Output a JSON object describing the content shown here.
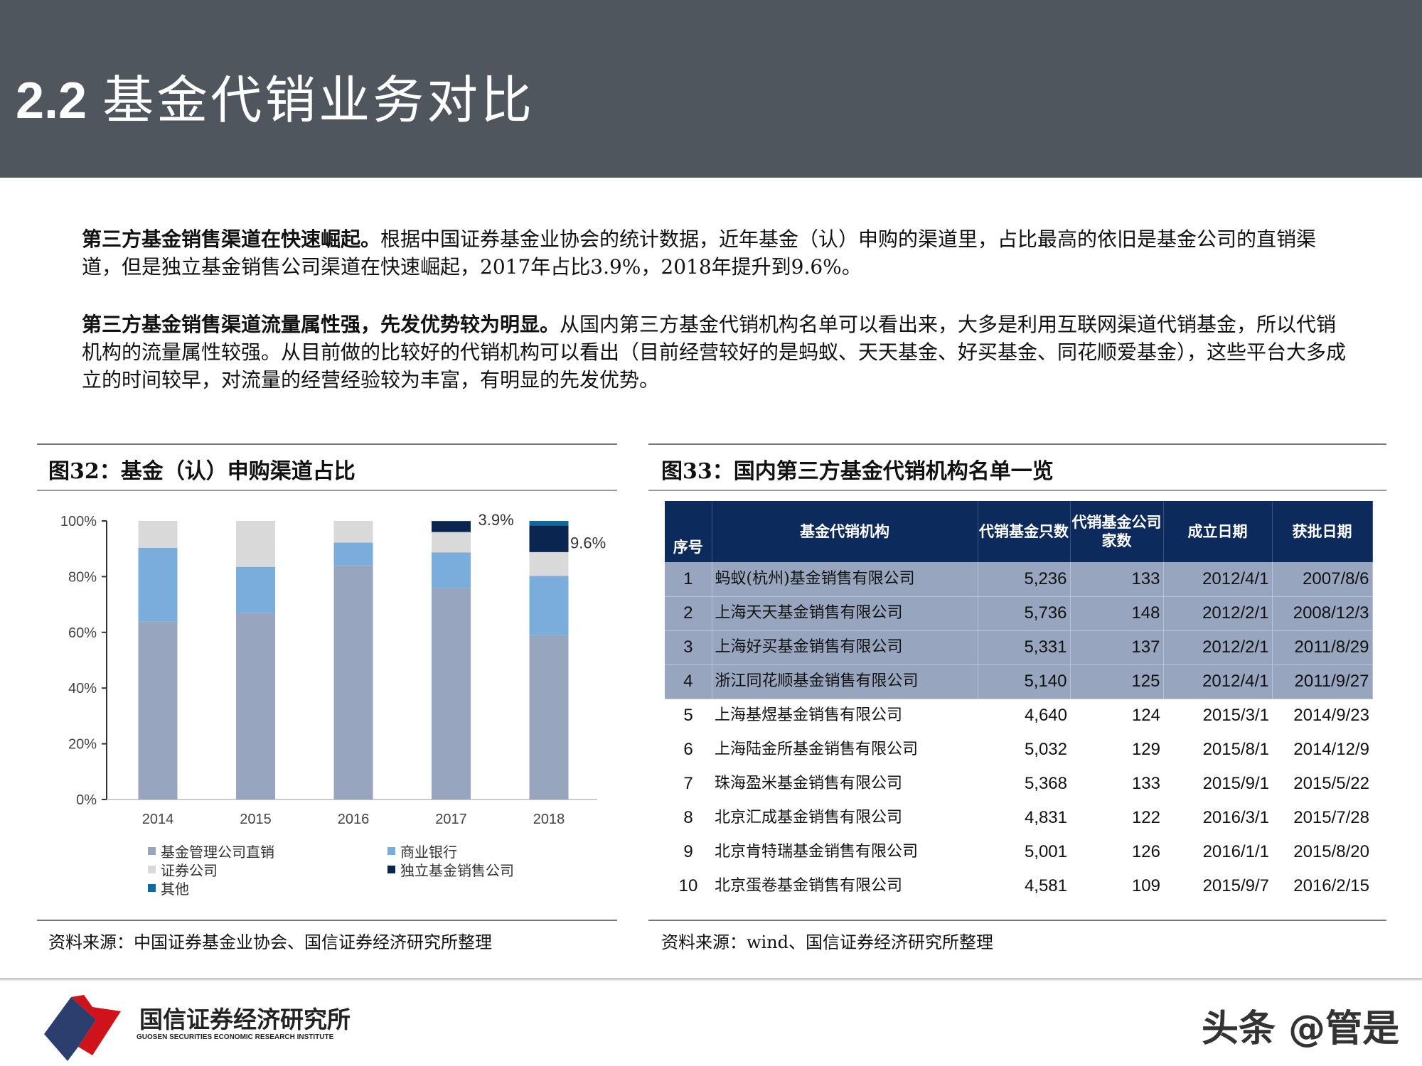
{
  "header": {
    "section_number": "2.2",
    "title": "基金代销业务对比"
  },
  "paragraphs": [
    {
      "bold": "第三方基金销售渠道在快速崛起。",
      "text": "根据中国证券基金业协会的统计数据，近年基金（认）申购的渠道里，占比最高的依旧是基金公司的直销渠道，但是独立基金销售公司渠道在快速崛起，2017年占比3.9%，2018年提升到9.6%。"
    },
    {
      "bold": "第三方基金销售渠道流量属性强，先发优势较为明显。",
      "text": "从国内第三方基金代销机构名单可以看出来，大多是利用互联网渠道代销基金，所以代销机构的流量属性较强。从目前做的比较好的代销机构可以看出（目前经营较好的是蚂蚁、天天基金、好买基金、同花顺爱基金），这些平台大多成立的时间较早，对流量的经营经验较为丰富，有明显的先发优势。"
    }
  ],
  "figure32": {
    "title": "图32：基金（认）申购渠道占比",
    "source": "资料来源：中国证券基金业协会、国信证券经济研究所整理"
  },
  "chart_data": {
    "type": "bar",
    "stacked": true,
    "categories": [
      "2014",
      "2015",
      "2016",
      "2017",
      "2018"
    ],
    "ylim": [
      0,
      100
    ],
    "yticks": [
      "0%",
      "20%",
      "40%",
      "60%",
      "80%",
      "100%"
    ],
    "series": [
      {
        "name": "基金管理公司直销",
        "color": "#97a5bf",
        "values": [
          64,
          67,
          84,
          76,
          59
        ]
      },
      {
        "name": "商业银行",
        "color": "#7aaddc",
        "values": [
          26.3,
          16.5,
          8.2,
          12.7,
          21.3
        ]
      },
      {
        "name": "证券公司",
        "color": "#d9d9d9",
        "values": [
          9.7,
          16.5,
          7.8,
          7.3,
          8.5
        ]
      },
      {
        "name": "独立基金销售公司",
        "color": "#0a2550",
        "values": [
          0,
          0,
          0,
          3.9,
          9.6
        ]
      },
      {
        "name": "其他",
        "color": "#0b6aa0",
        "values": [
          0,
          0,
          0,
          0.1,
          1.6
        ]
      }
    ],
    "annotations": [
      {
        "category": "2017",
        "text": "3.9%"
      },
      {
        "category": "2018",
        "text": "9.6%"
      }
    ],
    "legend": "bottom",
    "grid": false
  },
  "figure33": {
    "title": "图33：国内第三方基金代销机构名单一览",
    "source": "资料来源：wind、国信证券经济研究所整理",
    "columns": [
      "序号",
      "基金代销机构",
      "代销基金只数",
      "代销基金公司家数",
      "成立日期",
      "获批日期"
    ],
    "header_color": "#0d2a5c",
    "highlight_color": "#97a5bf",
    "rows": [
      [
        "1",
        "蚂蚁(杭州)基金销售有限公司",
        "5,236",
        "133",
        "2012/4/1",
        "2007/8/6"
      ],
      [
        "2",
        "上海天天基金销售有限公司",
        "5,736",
        "148",
        "2012/2/1",
        "2008/12/3"
      ],
      [
        "3",
        "上海好买基金销售有限公司",
        "5,331",
        "137",
        "2012/2/1",
        "2011/8/29"
      ],
      [
        "4",
        "浙江同花顺基金销售有限公司",
        "5,140",
        "125",
        "2012/4/1",
        "2011/9/27"
      ],
      [
        "5",
        "上海基煜基金销售有限公司",
        "4,640",
        "124",
        "2015/3/1",
        "2014/9/23"
      ],
      [
        "6",
        "上海陆金所基金销售有限公司",
        "5,032",
        "129",
        "2015/8/1",
        "2014/12/9"
      ],
      [
        "7",
        "珠海盈米基金销售有限公司",
        "5,368",
        "133",
        "2015/9/1",
        "2015/5/22"
      ],
      [
        "8",
        "北京汇成基金销售有限公司",
        "4,831",
        "122",
        "2016/3/1",
        "2015/7/28"
      ],
      [
        "9",
        "北京肯特瑞基金销售有限公司",
        "5,001",
        "126",
        "2016/1/1",
        "2015/8/20"
      ],
      [
        "10",
        "北京蛋卷基金销售有限公司",
        "4,581",
        "109",
        "2015/9/7",
        "2016/2/15"
      ]
    ]
  },
  "footer": {
    "logo_cn": "国信证券经济研究所",
    "logo_en": "GUOSEN SECURITIES ECONOMIC RESEARCH INSTITUTE",
    "watermark": "头条 @管是"
  }
}
